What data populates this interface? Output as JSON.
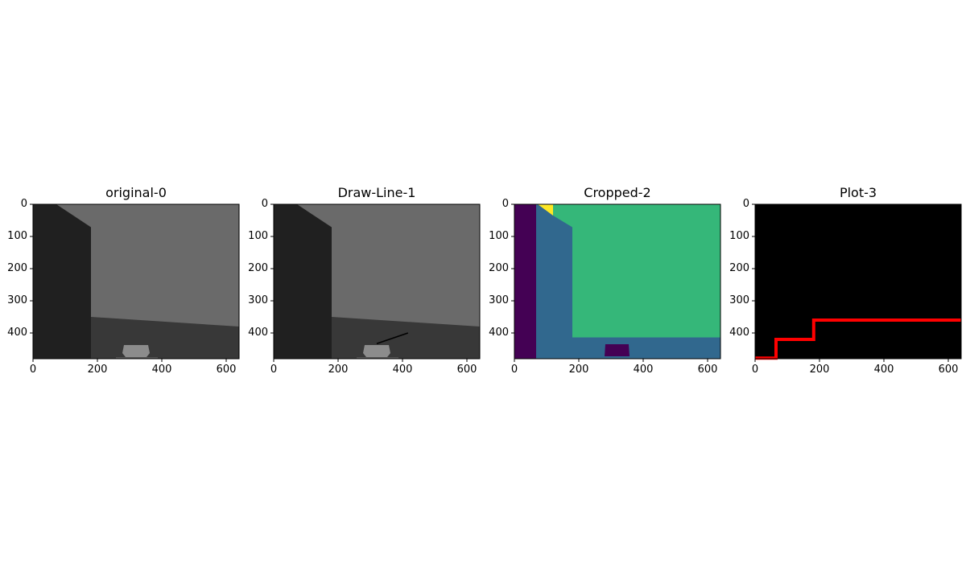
{
  "chart_data": [
    {
      "type": "image",
      "title": "original-0",
      "xticks": [
        0,
        200,
        400,
        600
      ],
      "yticks": [
        0,
        100,
        200,
        300,
        400
      ],
      "xlim": [
        0,
        640
      ],
      "ylim": [
        480,
        0
      ],
      "image_content": "grayscale room scene: dark left wall, light grey back wall, dark floor, small box near bottom center"
    },
    {
      "type": "image",
      "title": "Draw-Line-1",
      "xticks": [
        0,
        200,
        400,
        600
      ],
      "yticks": [
        0,
        100,
        200,
        300,
        400
      ],
      "xlim": [
        0,
        640
      ],
      "ylim": [
        480,
        0
      ],
      "line": {
        "x": [
          320,
          417
        ],
        "y": [
          433,
          400
        ],
        "color": "#000000"
      }
    },
    {
      "type": "image",
      "title": "Cropped-2",
      "xticks": [
        0,
        200,
        400,
        600
      ],
      "yticks": [
        0,
        100,
        200,
        300,
        400
      ],
      "xlim": [
        0,
        640
      ],
      "ylim": [
        480,
        0
      ],
      "colormap": [
        "#440154",
        "#31688e",
        "#35b779",
        "#fde725"
      ]
    },
    {
      "type": "line",
      "title": "Plot-3",
      "xticks": [
        0,
        200,
        400,
        600
      ],
      "yticks": [
        0,
        100,
        200,
        300,
        400
      ],
      "xlim": [
        0,
        640
      ],
      "ylim": [
        480,
        0
      ],
      "background": "#000000",
      "series": [
        {
          "color": "#ff0000",
          "x": [
            0,
            65,
            65,
            182,
            182,
            640
          ],
          "y": [
            478,
            478,
            420,
            420,
            360,
            360
          ]
        }
      ]
    }
  ]
}
